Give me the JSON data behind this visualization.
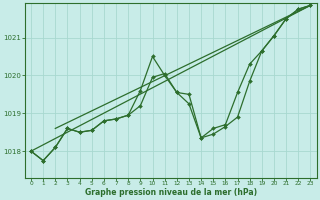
{
  "title": "Graphe pression niveau de la mer (hPa)",
  "bg_color": "#c8ece8",
  "grid_color": "#a8d8d0",
  "line_color": "#2d6e2d",
  "xlim": [
    -0.5,
    23.5
  ],
  "ylim": [
    1017.3,
    1021.9
  ],
  "yticks": [
    1018,
    1019,
    1020,
    1021
  ],
  "xticks": [
    0,
    1,
    2,
    3,
    4,
    5,
    6,
    7,
    8,
    9,
    10,
    11,
    12,
    13,
    14,
    15,
    16,
    17,
    18,
    19,
    20,
    21,
    22,
    23
  ],
  "series_wavy1": {
    "x": [
      0,
      1,
      2,
      3,
      4,
      5,
      6,
      7,
      8,
      9,
      10,
      11,
      12,
      13,
      14,
      15,
      16,
      17,
      18,
      19,
      20,
      21,
      22,
      23
    ],
    "y": [
      1018.0,
      1017.75,
      1018.1,
      1018.6,
      1018.5,
      1018.55,
      1018.8,
      1018.85,
      1018.95,
      1019.6,
      1020.5,
      1020.0,
      1019.55,
      1019.25,
      1018.35,
      1018.6,
      1018.7,
      1019.55,
      1020.3,
      1020.65,
      1021.05,
      1021.5,
      1021.75,
      1021.85
    ]
  },
  "series_wavy2": {
    "x": [
      0,
      1,
      2,
      3,
      4,
      5,
      6,
      7,
      8,
      9,
      10,
      11,
      12,
      13,
      14,
      15,
      16,
      17,
      18,
      19,
      20,
      21,
      22,
      23
    ],
    "y": [
      1018.0,
      1017.75,
      1018.1,
      1018.6,
      1018.5,
      1018.55,
      1018.8,
      1018.85,
      1018.95,
      1019.2,
      1019.95,
      1020.05,
      1019.55,
      1019.5,
      1018.35,
      1018.45,
      1018.65,
      1018.9,
      1019.85,
      1020.65,
      1021.05,
      1021.5,
      1021.75,
      1021.85
    ]
  },
  "trend_line1": {
    "x": [
      0,
      23
    ],
    "y": [
      1018.0,
      1021.85
    ]
  },
  "trend_line2": {
    "x": [
      2,
      23
    ],
    "y": [
      1018.6,
      1021.85
    ]
  }
}
